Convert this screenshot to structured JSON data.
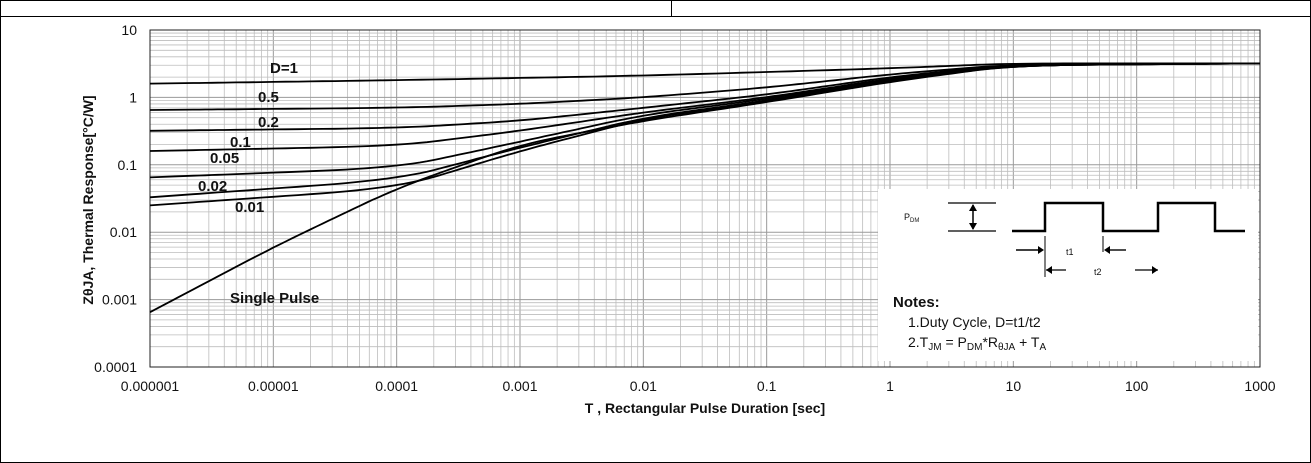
{
  "chart_data": {
    "type": "line",
    "xlabel": "T , Rectangular Pulse Duration [sec]",
    "ylabel": "ZθJA, Thermal Response[°C/W]",
    "xscale": "log",
    "yscale": "log",
    "xlim": [
      1e-06,
      1000
    ],
    "ylim": [
      0.0001,
      10
    ],
    "x_ticks": [
      "0.000001",
      "0.00001",
      "0.0001",
      "0.001",
      "0.01",
      "0.1",
      "1",
      "10",
      "100",
      "1000"
    ],
    "y_ticks": [
      "0.0001",
      "0.001",
      "0.01",
      "0.1",
      "1",
      "10"
    ],
    "grid": true,
    "series": [
      {
        "name": "D=1",
        "x": [
          1e-06,
          0.0001,
          0.01,
          1,
          10,
          1000
        ],
        "y": [
          1.6,
          1.8,
          2.1,
          2.7,
          3.2,
          3.2
        ]
      },
      {
        "name": "0.5",
        "x": [
          1e-06,
          0.0001,
          0.001,
          0.01,
          0.1,
          1,
          10,
          1000
        ],
        "y": [
          0.65,
          0.7,
          0.8,
          1.0,
          1.4,
          2.2,
          3.1,
          3.2
        ]
      },
      {
        "name": "0.2",
        "x": [
          1e-06,
          0.0001,
          0.001,
          0.01,
          0.1,
          1,
          10,
          1000
        ],
        "y": [
          0.32,
          0.35,
          0.45,
          0.7,
          1.1,
          2.0,
          3.1,
          3.2
        ]
      },
      {
        "name": "0.1",
        "x": [
          1e-06,
          0.0001,
          0.001,
          0.01,
          0.1,
          1,
          10,
          1000
        ],
        "y": [
          0.16,
          0.19,
          0.32,
          0.6,
          1.0,
          1.9,
          3.05,
          3.2
        ]
      },
      {
        "name": "0.05",
        "x": [
          1e-06,
          0.0001,
          0.001,
          0.01,
          0.1,
          1,
          10,
          1000
        ],
        "y": [
          0.065,
          0.09,
          0.22,
          0.55,
          0.95,
          1.85,
          3.0,
          3.2
        ]
      },
      {
        "name": "0.02",
        "x": [
          1e-06,
          0.0001,
          0.001,
          0.01,
          0.1,
          1,
          10,
          1000
        ],
        "y": [
          0.033,
          0.06,
          0.18,
          0.5,
          0.9,
          1.8,
          3.0,
          3.2
        ]
      },
      {
        "name": "0.01",
        "x": [
          1e-06,
          0.0001,
          0.001,
          0.01,
          0.1,
          1,
          10,
          1000
        ],
        "y": [
          0.025,
          0.045,
          0.16,
          0.48,
          0.88,
          1.75,
          3.0,
          3.2
        ]
      },
      {
        "name": "Single Pulse",
        "x": [
          1e-06,
          1e-05,
          0.0001,
          0.001,
          0.01,
          0.1,
          1,
          10,
          1000
        ],
        "y": [
          0.00065,
          0.006,
          0.045,
          0.2,
          0.45,
          0.85,
          1.7,
          3.0,
          3.2
        ]
      }
    ]
  },
  "labels": {
    "d1": "D=1",
    "d05": "0.5",
    "d02": "0.2",
    "d01": "0.1",
    "d005": "0.05",
    "d002": "0.02",
    "d001": "0.01",
    "single": "Single Pulse"
  },
  "inset": {
    "pdm_p": "P",
    "pdm_sub": "DM",
    "t1": "t1",
    "t2": "t2"
  },
  "notes": {
    "title": "Notes:",
    "line1": "1.Duty  Cycle, D=t1/t2",
    "line2_a": "2.T",
    "line2_sub1": "JM",
    "line2_b": " = P",
    "line2_sub2": "DM",
    "line2_c": "*R",
    "line2_sub3": "θJA",
    "line2_d": " + T",
    "line2_sub4": "A"
  }
}
